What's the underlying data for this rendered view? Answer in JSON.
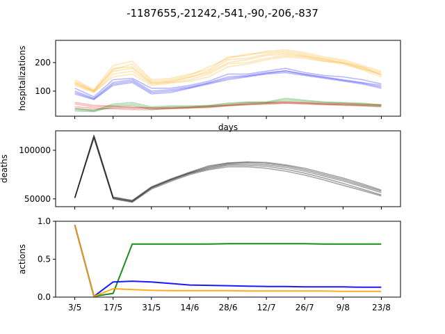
{
  "chart_data": {
    "title": "-1187655,-21242,-541,-90,-206,-837",
    "x_labels": [
      "3/5",
      "17/5",
      "31/5",
      "14/6",
      "28/6",
      "12/7",
      "26/7",
      "9/8",
      "23/8"
    ],
    "panels": [
      {
        "type": "line",
        "ylabel": "hospitalizations",
        "xlabel": "days",
        "ylim": [
          12,
          278
        ],
        "yticks": [
          100,
          200
        ],
        "x": [
          0,
          1,
          2,
          3,
          4,
          5,
          6,
          7,
          8,
          9,
          10,
          11,
          12,
          13,
          14,
          15,
          16
        ],
        "series": [
          {
            "name": "orange",
            "color": "#ffa500",
            "runs": [
              [
                130,
                100,
                180,
                185,
                130,
                135,
                150,
                170,
                210,
                215,
                230,
                235,
                225,
                210,
                200,
                180,
                160
              ],
              [
                120,
                95,
                160,
                170,
                125,
                130,
                140,
                160,
                195,
                200,
                215,
                225,
                220,
                205,
                195,
                175,
                150
              ],
              [
                140,
                105,
                190,
                205,
                140,
                145,
                160,
                175,
                220,
                225,
                240,
                245,
                235,
                220,
                210,
                190,
                170
              ],
              [
                125,
                98,
                150,
                160,
                120,
                128,
                135,
                150,
                185,
                195,
                210,
                220,
                215,
                205,
                200,
                185,
                165
              ],
              [
                135,
                102,
                175,
                195,
                135,
                140,
                155,
                185,
                215,
                230,
                235,
                240,
                230,
                215,
                205,
                185,
                155
              ],
              [
                128,
                99,
                170,
                180,
                128,
                133,
                148,
                165,
                200,
                210,
                225,
                230,
                222,
                212,
                198,
                178,
                158
              ]
            ]
          },
          {
            "name": "blue",
            "color": "#0000ff",
            "runs": [
              [
                100,
                75,
                130,
                140,
                100,
                105,
                115,
                130,
                150,
                155,
                165,
                170,
                160,
                150,
                140,
                130,
                120
              ],
              [
                90,
                70,
                120,
                130,
                90,
                95,
                110,
                125,
                140,
                150,
                160,
                165,
                155,
                145,
                135,
                125,
                110
              ],
              [
                110,
                80,
                140,
                145,
                110,
                110,
                120,
                135,
                160,
                160,
                170,
                180,
                165,
                155,
                150,
                140,
                125
              ],
              [
                95,
                72,
                125,
                135,
                95,
                100,
                112,
                128,
                145,
                152,
                162,
                172,
                158,
                148,
                138,
                128,
                115
              ]
            ]
          },
          {
            "name": "red",
            "color": "#ff0000",
            "runs": [
              [
                55,
                45,
                45,
                40,
                40,
                40,
                42,
                45,
                50,
                55,
                58,
                60,
                58,
                55,
                55,
                52,
                50
              ],
              [
                45,
                40,
                38,
                35,
                35,
                38,
                40,
                42,
                48,
                52,
                55,
                58,
                55,
                52,
                50,
                48,
                45
              ],
              [
                60,
                50,
                48,
                45,
                42,
                42,
                45,
                48,
                52,
                58,
                60,
                62,
                60,
                58,
                56,
                54,
                52
              ]
            ]
          },
          {
            "name": "green",
            "color": "#008000",
            "runs": [
              [
                35,
                30,
                50,
                55,
                40,
                45,
                45,
                48,
                55,
                60,
                60,
                70,
                65,
                60,
                58,
                55,
                50
              ],
              [
                30,
                28,
                45,
                50,
                35,
                40,
                42,
                45,
                50,
                55,
                58,
                65,
                60,
                55,
                52,
                50,
                45
              ],
              [
                40,
                32,
                55,
                60,
                45,
                48,
                48,
                50,
                58,
                62,
                62,
                75,
                68,
                62,
                60,
                58,
                52
              ]
            ]
          },
          {
            "name": "brown",
            "color": "#8b4513",
            "runs": [
              [
                38,
                35,
                40,
                42,
                40,
                40,
                42,
                45,
                50,
                52,
                55,
                58,
                56,
                54,
                52,
                50,
                48
              ]
            ]
          }
        ]
      },
      {
        "type": "line",
        "ylabel": "deaths",
        "ylim": [
          42000,
          120000
        ],
        "yticks": [
          50000,
          100000
        ],
        "x": [
          0,
          1,
          2,
          3,
          4,
          5,
          6,
          7,
          8,
          9,
          10,
          11,
          12,
          13,
          14,
          15,
          16
        ],
        "series": [
          {
            "name": "black",
            "color": "#000000",
            "runs": [
              [
                51000,
                115000,
                51500,
                48000,
                62000,
                70000,
                77000,
                83000,
                86500,
                87500,
                86500,
                84000,
                80000,
                75000,
                70000,
                64000,
                58000
              ],
              [
                51000,
                114000,
                51000,
                47500,
                61500,
                69500,
                76500,
                82000,
                85500,
                86000,
                85000,
                82500,
                78500,
                73500,
                68500,
                62500,
                56500
              ],
              [
                51000,
                113000,
                50500,
                47000,
                61000,
                69000,
                76000,
                81000,
                84500,
                84500,
                83500,
                80500,
                76500,
                71500,
                66000,
                60000,
                54000
              ],
              [
                51000,
                112500,
                50000,
                46500,
                60000,
                68000,
                75000,
                80000,
                83000,
                83000,
                81500,
                78500,
                74500,
                69500,
                64000,
                58500,
                53000
              ],
              [
                51000,
                115500,
                52000,
                48500,
                62500,
                70500,
                77500,
                84000,
                87000,
                88000,
                87500,
                85000,
                81500,
                76500,
                71500,
                65500,
                59000
              ]
            ]
          }
        ]
      },
      {
        "type": "line",
        "ylabel": "actions",
        "ylim": [
          0.0,
          1.0
        ],
        "yticks": [
          0.0,
          0.5,
          1.0
        ],
        "x": [
          0,
          1,
          2,
          3,
          4,
          5,
          6,
          7,
          8,
          9,
          10,
          11,
          12,
          13,
          14,
          15,
          16
        ],
        "series": [
          {
            "name": "green",
            "color": "#008000",
            "runs": [
              [
                0.95,
                0.01,
                0.05,
                0.7,
                0.7,
                0.7,
                0.7,
                0.7,
                0.705,
                0.705,
                0.705,
                0.705,
                0.705,
                0.7,
                0.7,
                0.7,
                0.7
              ]
            ]
          },
          {
            "name": "blue",
            "color": "#0000ff",
            "runs": [
              [
                0.95,
                0.01,
                0.2,
                0.21,
                0.2,
                0.18,
                0.16,
                0.155,
                0.15,
                0.145,
                0.14,
                0.14,
                0.135,
                0.135,
                0.135,
                0.13,
                0.13
              ]
            ]
          },
          {
            "name": "orange",
            "color": "#ffa500",
            "runs": [
              [
                0.95,
                0.01,
                0.11,
                0.1,
                0.09,
                0.085,
                0.085,
                0.085,
                0.085,
                0.08,
                0.08,
                0.08,
                0.08,
                0.08,
                0.075,
                0.075,
                0.075
              ]
            ]
          }
        ]
      }
    ]
  }
}
